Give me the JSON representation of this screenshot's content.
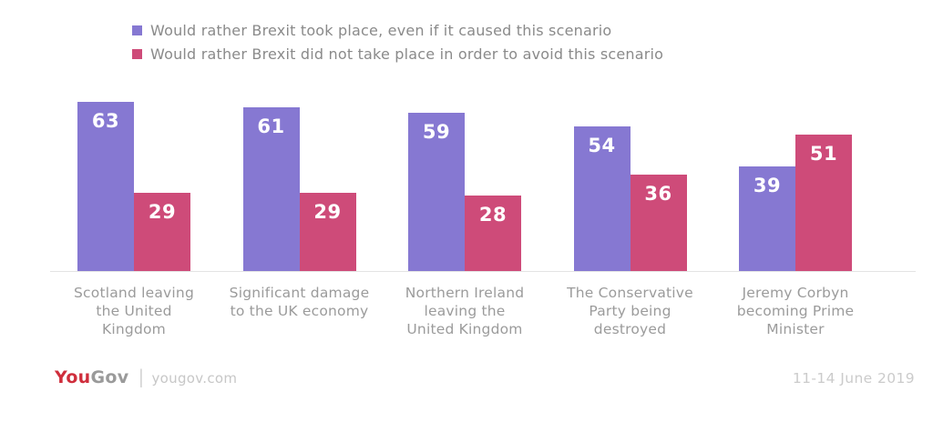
{
  "chart_data": {
    "type": "bar",
    "title": "",
    "categories": [
      "Scotland leaving the United Kingdom",
      "Significant damage to the UK economy",
      "Northern Ireland leaving the United Kingdom",
      "The Conservative Party being destroyed",
      "Jeremy Corbyn becoming Prime Minister"
    ],
    "category_lines": [
      [
        "Scotland leaving",
        "the United",
        "Kingdom"
      ],
      [
        "Significant damage",
        "to the UK economy"
      ],
      [
        "Northern Ireland",
        "leaving the",
        "United Kingdom"
      ],
      [
        "The Conservative",
        "Party being",
        "destroyed"
      ],
      [
        "Jeremy Corbyn",
        "becoming Prime",
        "Minister"
      ]
    ],
    "series": [
      {
        "name": "Would rather Brexit took place, even if it caused this scenario",
        "color": "#8678d2",
        "values": [
          63,
          61,
          59,
          54,
          39
        ]
      },
      {
        "name": "Would rather Brexit did not take place in order to avoid this scenario",
        "color": "#ce4b79",
        "values": [
          29,
          29,
          28,
          36,
          51
        ]
      }
    ],
    "value_labels_shown": true,
    "value_label_color": "#ffffff",
    "ylim": [
      0,
      65
    ],
    "grid": false,
    "legend_position": "top-left",
    "axis_line_color": "#e4e4e4",
    "category_label_color": "#9b9b9b"
  },
  "footer": {
    "logo_you": "You",
    "logo_gov": "Gov",
    "logo_divider": "|",
    "site": "yougov.com",
    "date": "11-14 June 2019",
    "logo_red": "#cf2e3c"
  }
}
